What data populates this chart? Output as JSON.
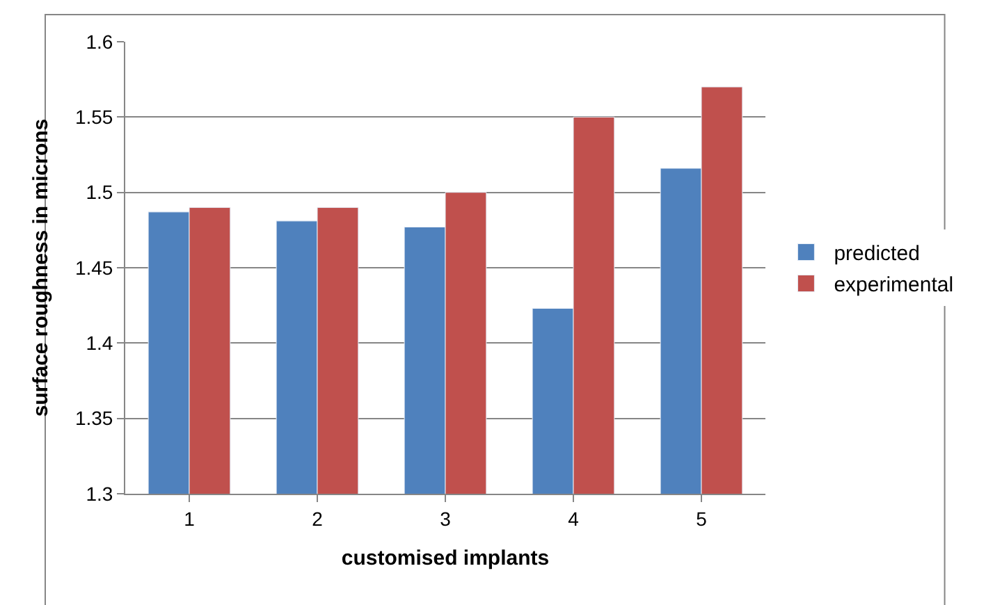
{
  "chart_data": {
    "type": "bar",
    "xlabel": "customised implants",
    "ylabel": "surface roughness in microns",
    "categories": [
      "1",
      "2",
      "3",
      "4",
      "5"
    ],
    "series": [
      {
        "name": "predicted",
        "color": "#4f81bd",
        "values": [
          1.487,
          1.481,
          1.477,
          1.423,
          1.516
        ]
      },
      {
        "name": "experimental",
        "color": "#c0504d",
        "values": [
          1.49,
          1.49,
          1.5,
          1.55,
          1.57
        ]
      }
    ],
    "ylim": [
      1.3,
      1.6
    ],
    "yticks": [
      1.3,
      1.35,
      1.4,
      1.45,
      1.5,
      1.55,
      1.6
    ],
    "grid": "y",
    "legend": "right"
  }
}
